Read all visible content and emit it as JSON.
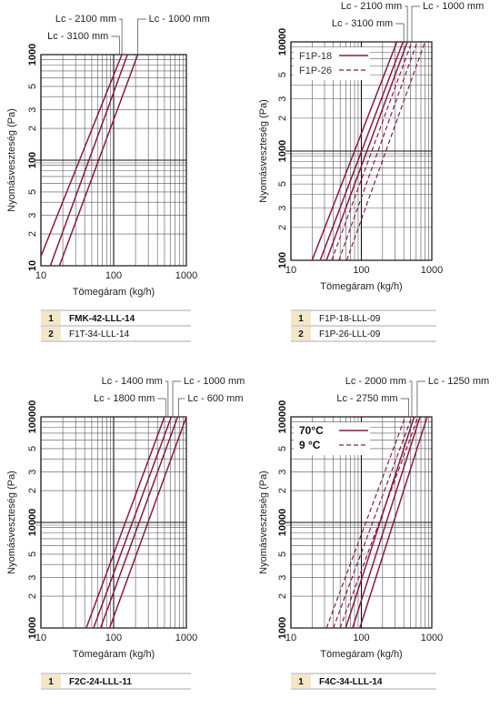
{
  "chart_data": [
    {
      "type": "line",
      "xscale": "log",
      "yscale": "log",
      "xlim": [
        10,
        1000
      ],
      "ylim": [
        10,
        1000
      ],
      "xlabel": "Tömegáram (kg/h)",
      "ylabel": "Nyomásveszteség (Pa)",
      "x_ticks": [
        "10",
        "100",
        "1000"
      ],
      "y_ticks": [
        {
          "v": 10,
          "t": "10",
          "big": true
        },
        {
          "v": 20,
          "t": "2"
        },
        {
          "v": 30,
          "t": "3"
        },
        {
          "v": 50,
          "t": "5"
        },
        {
          "v": 100,
          "t": "100",
          "big": true
        },
        {
          "v": 200,
          "t": "2"
        },
        {
          "v": 300,
          "t": "3"
        },
        {
          "v": 500,
          "t": "5"
        },
        {
          "v": 1000,
          "t": "1000",
          "big": true
        }
      ],
      "series": [
        {
          "style": "solid",
          "points": [
            [
              10,
              12.3
            ],
            [
              130,
              1000
            ]
          ]
        },
        {
          "style": "solid",
          "points": [
            [
              13.5,
              10
            ],
            [
              155,
              1000
            ]
          ]
        },
        {
          "style": "solid",
          "points": [
            [
              18,
              10
            ],
            [
              215,
              1000
            ]
          ]
        }
      ],
      "annotations": [
        {
          "text": "Lc - 2100 mm",
          "target": [
            130,
            1000
          ],
          "label_pos": "upper-left"
        },
        {
          "text": "Lc - 3100 mm",
          "target": [
            120,
            1000
          ],
          "label_pos": "left"
        },
        {
          "text": "Lc - 1000 mm",
          "target": [
            215,
            1000
          ],
          "label_pos": "upper-right"
        }
      ],
      "table": [
        {
          "num": "1",
          "text": "FMK-42-LLL-14",
          "bold": true
        },
        {
          "num": "2",
          "text": "F1T-34-LLL-14",
          "bold": false
        }
      ]
    },
    {
      "type": "line",
      "xscale": "log",
      "yscale": "log",
      "xlim": [
        10,
        1000
      ],
      "ylim": [
        100,
        10000
      ],
      "xlabel": "Tömegáram (kg/h)",
      "ylabel": "Nyomásveszteség (Pa)",
      "x_ticks": [
        "10",
        "100",
        "1000"
      ],
      "y_ticks": [
        {
          "v": 100,
          "t": "100",
          "big": true
        },
        {
          "v": 200,
          "t": "2"
        },
        {
          "v": 300,
          "t": "3"
        },
        {
          "v": 500,
          "t": "5"
        },
        {
          "v": 1000,
          "t": "1000",
          "big": true
        },
        {
          "v": 2000,
          "t": "2"
        },
        {
          "v": 3000,
          "t": "3"
        },
        {
          "v": 5000,
          "t": "5"
        },
        {
          "v": 10000,
          "t": "10000",
          "big": true
        }
      ],
      "legend": {
        "position": "top-left",
        "entries": [
          {
            "label": "F1P-18",
            "style": "solid"
          },
          {
            "label": "F1P-26",
            "style": "dashed"
          }
        ]
      },
      "series": [
        {
          "style": "solid",
          "points": [
            [
              20,
              100
            ],
            [
              320,
              10000
            ]
          ]
        },
        {
          "style": "solid",
          "points": [
            [
              26,
              100
            ],
            [
              390,
              10000
            ]
          ]
        },
        {
          "style": "solid",
          "points": [
            [
              32,
              100
            ],
            [
              450,
              10000
            ]
          ]
        },
        {
          "style": "dashed",
          "points": [
            [
              38,
              100
            ],
            [
              520,
              10000
            ]
          ]
        },
        {
          "style": "dashed",
          "points": [
            [
              48,
              100
            ],
            [
              620,
              10000
            ]
          ]
        },
        {
          "style": "dashed",
          "points": [
            [
              62,
              100
            ],
            [
              800,
              10000
            ]
          ]
        }
      ],
      "annotations": [
        {
          "text": "Lc - 2100 mm",
          "target": [
            450,
            10000
          ],
          "label_pos": "upper-left"
        },
        {
          "text": "Lc - 3100 mm",
          "target": [
            400,
            10000
          ],
          "label_pos": "left"
        },
        {
          "text": "Lc - 1000 mm",
          "target": [
            520,
            10000
          ],
          "label_pos": "upper-right"
        }
      ],
      "table": [
        {
          "num": "1",
          "text": "F1P-18-LLL-09",
          "bold": false
        },
        {
          "num": "2",
          "text": "F1P-26-LLL-09",
          "bold": false
        }
      ]
    },
    {
      "type": "line",
      "xscale": "log",
      "yscale": "log",
      "xlim": [
        10,
        1000
      ],
      "ylim": [
        1000,
        100000
      ],
      "xlabel": "Tömegáram (kg/h)",
      "ylabel": "Nyomásveszteség (Pa)",
      "x_ticks": [
        "10",
        "100",
        "1000"
      ],
      "y_ticks": [
        {
          "v": 1000,
          "t": "1000",
          "big": true
        },
        {
          "v": 2000,
          "t": "2"
        },
        {
          "v": 3000,
          "t": "3"
        },
        {
          "v": 5000,
          "t": "5"
        },
        {
          "v": 10000,
          "t": "10000",
          "big": true
        },
        {
          "v": 20000,
          "t": "2"
        },
        {
          "v": 30000,
          "t": "3"
        },
        {
          "v": 50000,
          "t": "5"
        },
        {
          "v": 100000,
          "t": "100000",
          "big": true
        }
      ],
      "series": [
        {
          "style": "solid",
          "points": [
            [
              42,
              1000
            ],
            [
              500,
              100000
            ]
          ]
        },
        {
          "style": "solid",
          "points": [
            [
              53,
              1000
            ],
            [
              620,
              100000
            ]
          ]
        },
        {
          "style": "solid",
          "points": [
            [
              66,
              1000
            ],
            [
              760,
              100000
            ]
          ]
        },
        {
          "style": "solid",
          "points": [
            [
              88,
              1000
            ],
            [
              1000,
              100000
            ]
          ]
        }
      ],
      "annotations": [
        {
          "text": "Lc - 1400 mm",
          "target": [
            560,
            100000
          ],
          "label_pos": "upper-left"
        },
        {
          "text": "Lc - 1800 mm",
          "target": [
            520,
            100000
          ],
          "label_pos": "left"
        },
        {
          "text": "Lc - 1000 mm",
          "target": [
            650,
            100000
          ],
          "label_pos": "upper-right"
        },
        {
          "text": "Lc - 600 mm",
          "target": [
            780,
            100000
          ],
          "label_pos": "right"
        }
      ],
      "table": [
        {
          "num": "1",
          "text": "F2C-24-LLL-11",
          "bold": true
        }
      ]
    },
    {
      "type": "line",
      "xscale": "log",
      "yscale": "log",
      "xlim": [
        10,
        1000
      ],
      "ylim": [
        1000,
        100000
      ],
      "xlabel": "Tömegáram (kg/h)",
      "ylabel": "Nyomásveszteség (Pa)",
      "x_ticks": [
        "10",
        "100",
        "1000"
      ],
      "y_ticks": [
        {
          "v": 1000,
          "t": "1000",
          "big": true
        },
        {
          "v": 2000,
          "t": "2"
        },
        {
          "v": 3000,
          "t": "3"
        },
        {
          "v": 5000,
          "t": "5"
        },
        {
          "v": 10000,
          "t": "10000",
          "big": true
        },
        {
          "v": 20000,
          "t": "2"
        },
        {
          "v": 30000,
          "t": "3"
        },
        {
          "v": 50000,
          "t": "5"
        },
        {
          "v": 100000,
          "t": "100000",
          "big": true
        }
      ],
      "legend": {
        "position": "top-left",
        "entries": [
          {
            "label": "70°C",
            "style": "solid"
          },
          {
            "label": "9 °C",
            "style": "dashed"
          }
        ]
      },
      "series": [
        {
          "style": "solid",
          "points": [
            [
              60,
              1000
            ],
            [
              560,
              100000
            ]
          ]
        },
        {
          "style": "solid",
          "points": [
            [
              75,
              1000
            ],
            [
              680,
              100000
            ]
          ]
        },
        {
          "style": "solid",
          "points": [
            [
              95,
              1000
            ],
            [
              860,
              100000
            ]
          ]
        },
        {
          "style": "dashed",
          "points": [
            [
              32,
              1000
            ],
            [
              420,
              100000
            ]
          ]
        },
        {
          "style": "dashed",
          "points": [
            [
              40,
              1000
            ],
            [
              520,
              100000
            ]
          ]
        },
        {
          "style": "dashed",
          "points": [
            [
              50,
              1000
            ],
            [
              640,
              100000
            ]
          ]
        }
      ],
      "annotations": [
        {
          "text": "Lc - 2000 mm",
          "target": [
            520,
            100000
          ],
          "label_pos": "upper-left"
        },
        {
          "text": "Lc - 2750 mm",
          "target": [
            470,
            100000
          ],
          "label_pos": "left"
        },
        {
          "text": "Lc - 1250 mm",
          "target": [
            620,
            100000
          ],
          "label_pos": "upper-right"
        }
      ],
      "table": [
        {
          "num": "1",
          "text": "F4C-34-LLL-14",
          "bold": true
        }
      ]
    }
  ]
}
